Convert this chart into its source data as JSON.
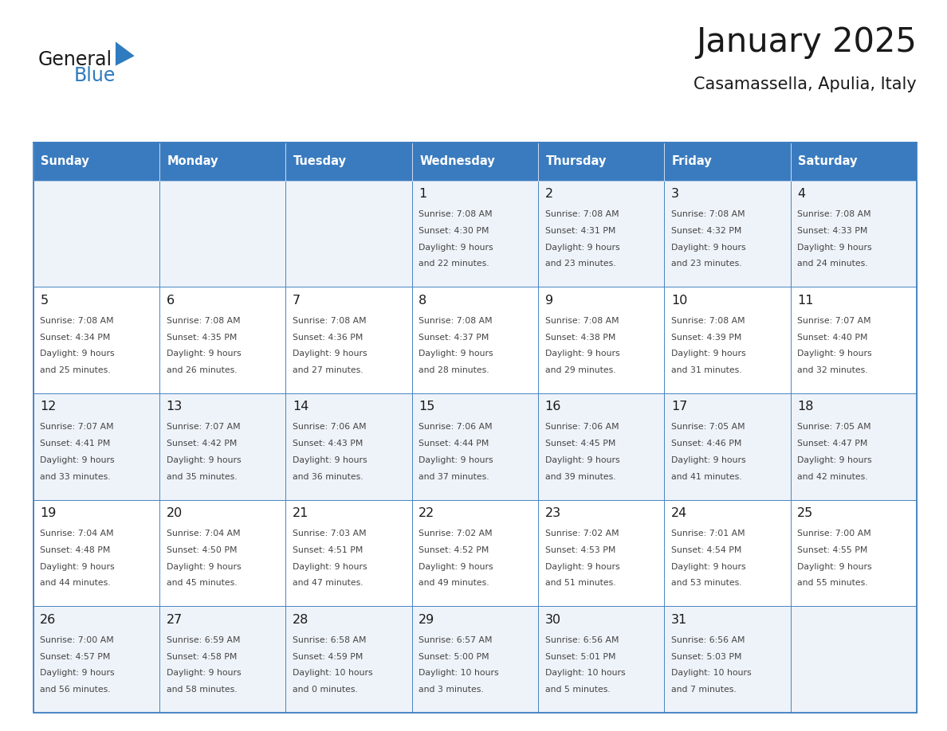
{
  "title": "January 2025",
  "subtitle": "Casamassella, Apulia, Italy",
  "days_of_week": [
    "Sunday",
    "Monday",
    "Tuesday",
    "Wednesday",
    "Thursday",
    "Friday",
    "Saturday"
  ],
  "weeks": [
    [
      {
        "day": "",
        "sunrise": "",
        "sunset": "",
        "daylight": ""
      },
      {
        "day": "",
        "sunrise": "",
        "sunset": "",
        "daylight": ""
      },
      {
        "day": "",
        "sunrise": "",
        "sunset": "",
        "daylight": ""
      },
      {
        "day": "1",
        "sunrise": "7:08 AM",
        "sunset": "4:30 PM",
        "daylight": "9 hours and 22 minutes."
      },
      {
        "day": "2",
        "sunrise": "7:08 AM",
        "sunset": "4:31 PM",
        "daylight": "9 hours and 23 minutes."
      },
      {
        "day": "3",
        "sunrise": "7:08 AM",
        "sunset": "4:32 PM",
        "daylight": "9 hours and 23 minutes."
      },
      {
        "day": "4",
        "sunrise": "7:08 AM",
        "sunset": "4:33 PM",
        "daylight": "9 hours and 24 minutes."
      }
    ],
    [
      {
        "day": "5",
        "sunrise": "7:08 AM",
        "sunset": "4:34 PM",
        "daylight": "9 hours and 25 minutes."
      },
      {
        "day": "6",
        "sunrise": "7:08 AM",
        "sunset": "4:35 PM",
        "daylight": "9 hours and 26 minutes."
      },
      {
        "day": "7",
        "sunrise": "7:08 AM",
        "sunset": "4:36 PM",
        "daylight": "9 hours and 27 minutes."
      },
      {
        "day": "8",
        "sunrise": "7:08 AM",
        "sunset": "4:37 PM",
        "daylight": "9 hours and 28 minutes."
      },
      {
        "day": "9",
        "sunrise": "7:08 AM",
        "sunset": "4:38 PM",
        "daylight": "9 hours and 29 minutes."
      },
      {
        "day": "10",
        "sunrise": "7:08 AM",
        "sunset": "4:39 PM",
        "daylight": "9 hours and 31 minutes."
      },
      {
        "day": "11",
        "sunrise": "7:07 AM",
        "sunset": "4:40 PM",
        "daylight": "9 hours and 32 minutes."
      }
    ],
    [
      {
        "day": "12",
        "sunrise": "7:07 AM",
        "sunset": "4:41 PM",
        "daylight": "9 hours and 33 minutes."
      },
      {
        "day": "13",
        "sunrise": "7:07 AM",
        "sunset": "4:42 PM",
        "daylight": "9 hours and 35 minutes."
      },
      {
        "day": "14",
        "sunrise": "7:06 AM",
        "sunset": "4:43 PM",
        "daylight": "9 hours and 36 minutes."
      },
      {
        "day": "15",
        "sunrise": "7:06 AM",
        "sunset": "4:44 PM",
        "daylight": "9 hours and 37 minutes."
      },
      {
        "day": "16",
        "sunrise": "7:06 AM",
        "sunset": "4:45 PM",
        "daylight": "9 hours and 39 minutes."
      },
      {
        "day": "17",
        "sunrise": "7:05 AM",
        "sunset": "4:46 PM",
        "daylight": "9 hours and 41 minutes."
      },
      {
        "day": "18",
        "sunrise": "7:05 AM",
        "sunset": "4:47 PM",
        "daylight": "9 hours and 42 minutes."
      }
    ],
    [
      {
        "day": "19",
        "sunrise": "7:04 AM",
        "sunset": "4:48 PM",
        "daylight": "9 hours and 44 minutes."
      },
      {
        "day": "20",
        "sunrise": "7:04 AM",
        "sunset": "4:50 PM",
        "daylight": "9 hours and 45 minutes."
      },
      {
        "day": "21",
        "sunrise": "7:03 AM",
        "sunset": "4:51 PM",
        "daylight": "9 hours and 47 minutes."
      },
      {
        "day": "22",
        "sunrise": "7:02 AM",
        "sunset": "4:52 PM",
        "daylight": "9 hours and 49 minutes."
      },
      {
        "day": "23",
        "sunrise": "7:02 AM",
        "sunset": "4:53 PM",
        "daylight": "9 hours and 51 minutes."
      },
      {
        "day": "24",
        "sunrise": "7:01 AM",
        "sunset": "4:54 PM",
        "daylight": "9 hours and 53 minutes."
      },
      {
        "day": "25",
        "sunrise": "7:00 AM",
        "sunset": "4:55 PM",
        "daylight": "9 hours and 55 minutes."
      }
    ],
    [
      {
        "day": "26",
        "sunrise": "7:00 AM",
        "sunset": "4:57 PM",
        "daylight": "9 hours and 56 minutes."
      },
      {
        "day": "27",
        "sunrise": "6:59 AM",
        "sunset": "4:58 PM",
        "daylight": "9 hours and 58 minutes."
      },
      {
        "day": "28",
        "sunrise": "6:58 AM",
        "sunset": "4:59 PM",
        "daylight": "10 hours and 0 minutes."
      },
      {
        "day": "29",
        "sunrise": "6:57 AM",
        "sunset": "5:00 PM",
        "daylight": "10 hours and 3 minutes."
      },
      {
        "day": "30",
        "sunrise": "6:56 AM",
        "sunset": "5:01 PM",
        "daylight": "10 hours and 5 minutes."
      },
      {
        "day": "31",
        "sunrise": "6:56 AM",
        "sunset": "5:03 PM",
        "daylight": "10 hours and 7 minutes."
      },
      {
        "day": "",
        "sunrise": "",
        "sunset": "",
        "daylight": ""
      }
    ]
  ],
  "fig_width": 11.88,
  "fig_height": 9.18,
  "logo_text_general": "General",
  "logo_text_blue": "Blue",
  "header_bar_color": "#3a7bbf",
  "cell_border_color": "#3a7bbf",
  "row_bg_colors": [
    "#eef3f9",
    "#ffffff"
  ],
  "header_text_color": "#ffffff",
  "text_color": "#444444",
  "day_number_color": "#1a1a1a",
  "title_color": "#1a1a1a",
  "subtitle_color": "#1a1a1a",
  "logo_general_color": "#1a1a1a",
  "logo_blue_color": "#2e7bbf",
  "logo_triangle_color": "#2e7bbf"
}
